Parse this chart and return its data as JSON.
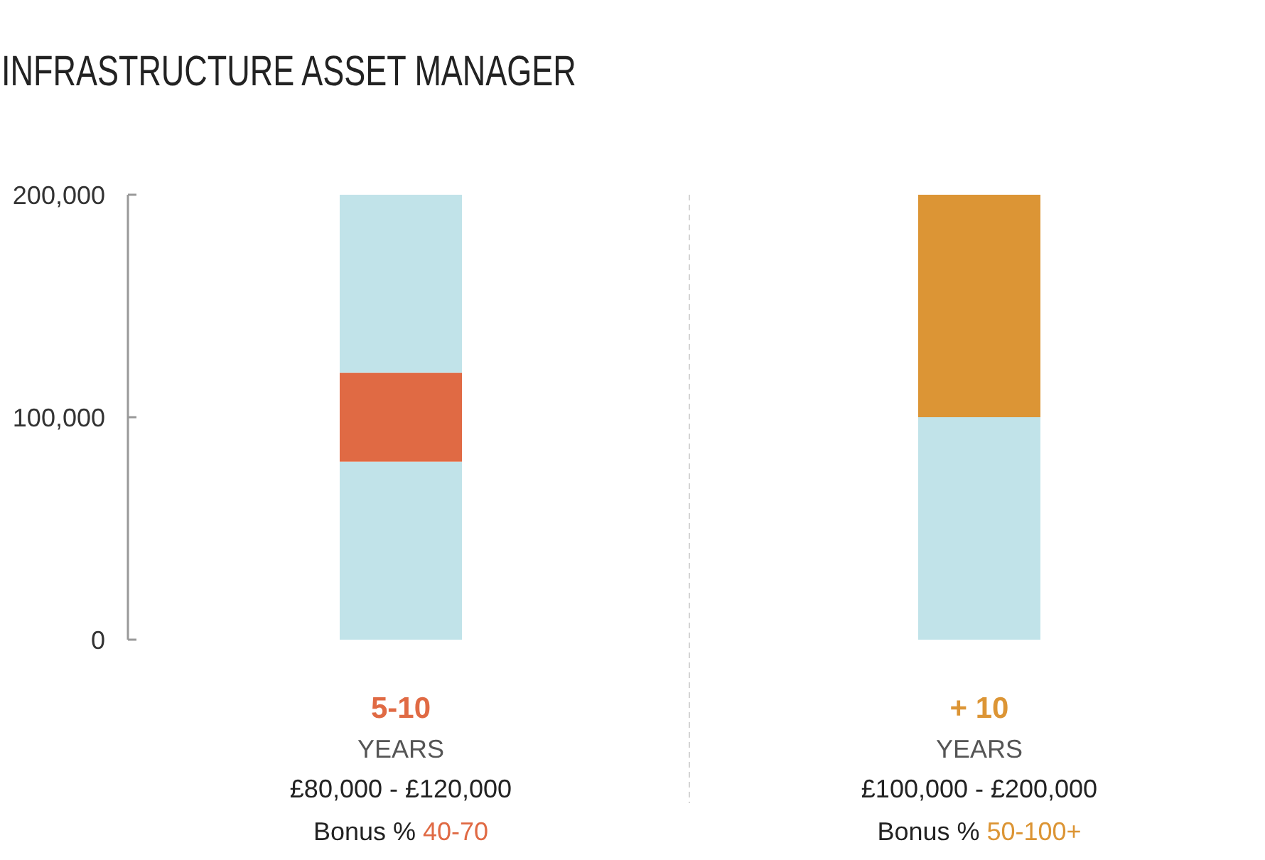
{
  "chart_data": {
    "type": "bar",
    "title": "INFRASTRUCTURE ASSET MANAGER",
    "categories": [
      "5-10\nYEARS\n£80,000 - £120,000\nBonus % 40-70",
      "+ 10\nYEARS\n£100,000 - £200,000\nBonus % 50-100+"
    ],
    "stacked": true,
    "series": [
      {
        "color": "#c1e3e9",
        "values": [
          80000,
          100000
        ]
      },
      {
        "colors": [
          "#e06a44",
          "#dc9535"
        ],
        "values": [
          40000,
          100000
        ]
      },
      {
        "color": "#c1e3e9",
        "values": [
          80000,
          null
        ]
      }
    ],
    "ylim": [
      0,
      200000
    ],
    "yticks": [
      0,
      {
        "value": 100000,
        "label": "100,000"
      },
      {
        "value": 200000,
        "label": "200,000"
      }
    ]
  }
}
